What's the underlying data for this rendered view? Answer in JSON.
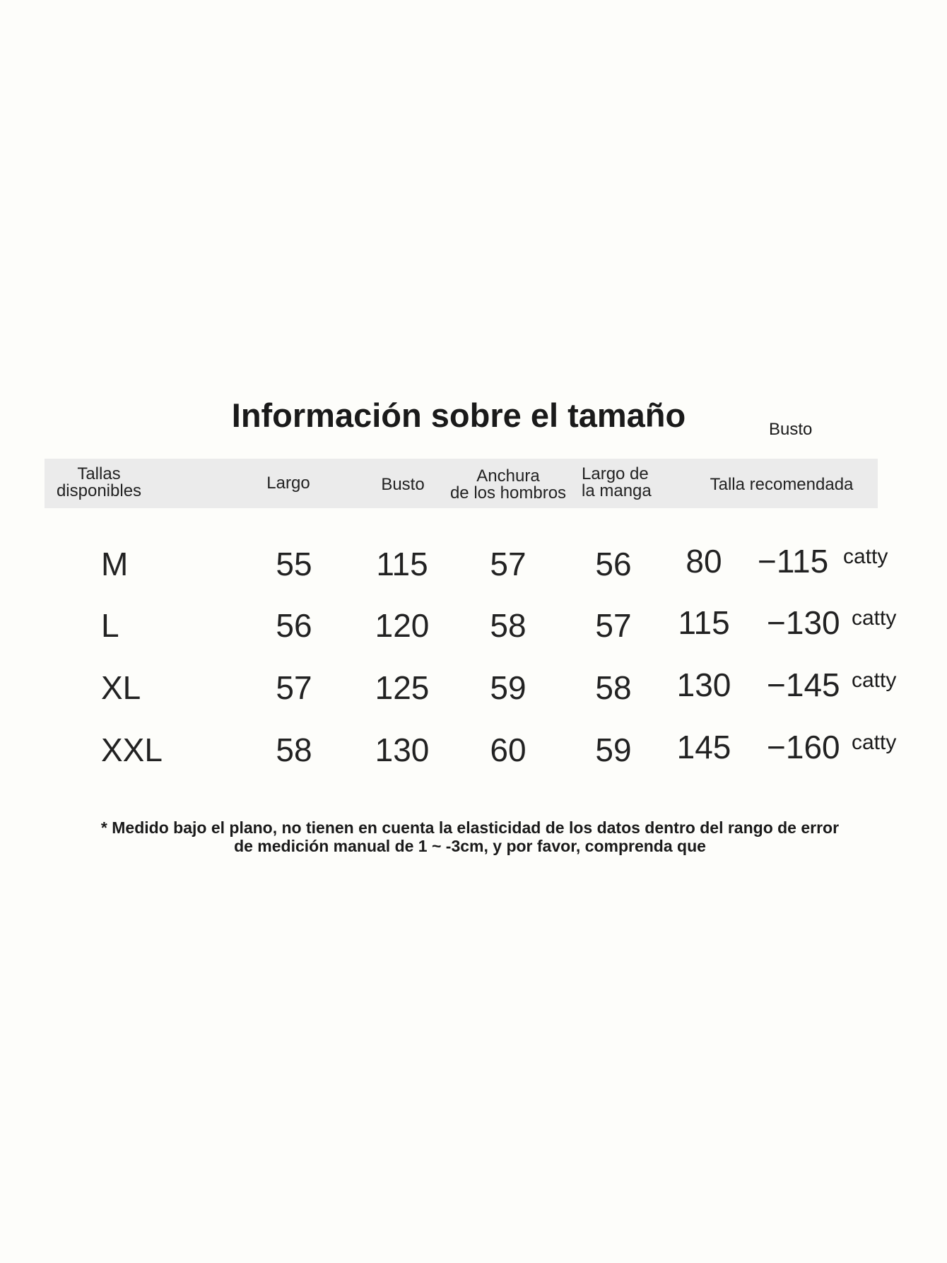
{
  "title": "Información sobre el tamaño",
  "busto_note": "Busto",
  "headers": [
    "Tallas\ndisponibles",
    "Largo",
    "Busto",
    "Anchura\nde los hombros",
    "Largo de\nla manga",
    "Talla recomendada"
  ],
  "header_lines": {
    "tallas": [
      "Tallas",
      "disponibles"
    ],
    "largo": "Largo",
    "busto": "Busto",
    "anchura": [
      "Anchura",
      "de los hombros"
    ],
    "manga": [
      "Largo de",
      "la manga"
    ],
    "talla": "Talla recomendada"
  },
  "rows": [
    {
      "size": "M",
      "largo": "55",
      "busto": "115",
      "anchura": "57",
      "manga": "56",
      "rec_from": "80",
      "rec_to": "−115",
      "unit": "catty"
    },
    {
      "size": "L",
      "largo": "56",
      "busto": "120",
      "anchura": "58",
      "manga": "57",
      "rec_from": "115",
      "rec_to": "−130",
      "unit": "catty"
    },
    {
      "size": "XL",
      "largo": "57",
      "busto": "125",
      "anchura": "59",
      "manga": "58",
      "rec_from": "130",
      "rec_to": "−145",
      "unit": "catty"
    },
    {
      "size": "XXL",
      "largo": "58",
      "busto": "130",
      "anchura": "60",
      "manga": "59",
      "rec_from": "145",
      "rec_to": "−160",
      "unit": "catty"
    }
  ],
  "footnote": [
    "* Medido bajo el plano, no tienen en cuenta la elasticidad de los datos dentro del rango de error",
    "de medición manual de 1 ~ -3cm, y por favor, comprenda que"
  ]
}
